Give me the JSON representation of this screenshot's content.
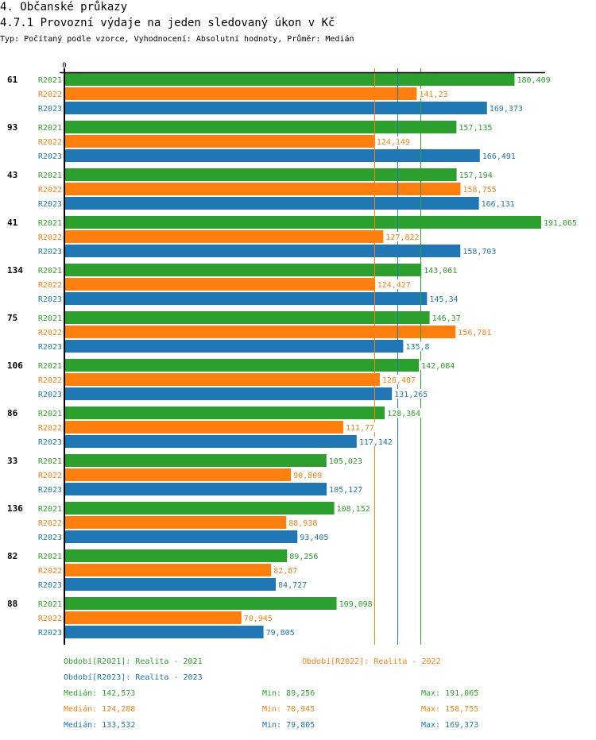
{
  "header": {
    "section_title": "4. Občanské průkazy",
    "chart_title": "4.7.1 Provozní výdaje na jeden sledovaný úkon v Kč",
    "subtitle": "Typ: Počítaný podle vzorce, Vyhodnocení: Absolutní hodnoty, Průměr: Medián"
  },
  "colors": {
    "R2021": "#2ca02c",
    "R2022": "#ff7f0e",
    "R2023": "#1f77b4",
    "axis": "#000000"
  },
  "chart_data": {
    "type": "bar",
    "orientation": "horizontal",
    "title": "4.7.1 Provozní výdaje na jeden sledovaný úkon v Kč",
    "xlabel": "",
    "ylabel": "",
    "x_tick_labels": [
      "0"
    ],
    "xlim": [
      0,
      192
    ],
    "grid": false,
    "categories": [
      "61",
      "93",
      "43",
      "41",
      "134",
      "75",
      "106",
      "86",
      "33",
      "136",
      "82",
      "88"
    ],
    "series": [
      {
        "name": "R2021",
        "values": [
          180.409,
          157.135,
          157.194,
          191.065,
          143.061,
          146.37,
          142.084,
          128.364,
          105.023,
          108.152,
          89.256,
          109.098
        ],
        "labels": [
          "180,409",
          "157,135",
          "157,194",
          "191,065",
          "143,061",
          "146,37",
          "142,084",
          "128,364",
          "105,023",
          "108,152",
          "89,256",
          "109,098"
        ],
        "median": 142.573
      },
      {
        "name": "R2022",
        "values": [
          141.23,
          124.149,
          158.755,
          127.822,
          124.427,
          156.781,
          126.407,
          111.77,
          90.809,
          88.938,
          82.87,
          70.945
        ],
        "labels": [
          "141,23",
          "124,149",
          "158,755",
          "127,822",
          "124,427",
          "156,781",
          "126,407",
          "111,77",
          "90,809",
          "88,938",
          "82,87",
          "70,945"
        ],
        "median": 124.288
      },
      {
        "name": "R2023",
        "values": [
          169.373,
          166.491,
          166.131,
          158.703,
          145.34,
          135.8,
          131.265,
          117.142,
          105.127,
          93.405,
          84.727,
          79.805
        ],
        "labels": [
          "169,373",
          "166,491",
          "166,131",
          "158,703",
          "145,34",
          "135,8",
          "131,265",
          "117,142",
          "105,127",
          "93,405",
          "84,727",
          "79,805"
        ],
        "median": 133.532
      }
    ],
    "legend_placement": "bottom",
    "legend": [
      {
        "series": "R2021",
        "text": "Období[R2021]: Realita - 2021"
      },
      {
        "series": "R2022",
        "text": "Období[R2022]: Realita - 2022"
      },
      {
        "series": "R2023",
        "text": "Období[R2023]: Realita - 2023"
      }
    ],
    "stats": [
      {
        "series": "R2021",
        "median": "Medián: 142,573",
        "min": "Min: 89,256",
        "max": "Max: 191,065"
      },
      {
        "series": "R2022",
        "median": "Medián: 124,288",
        "min": "Min: 70,945",
        "max": "Max: 158,755"
      },
      {
        "series": "R2023",
        "median": "Medián: 133,532",
        "min": "Min: 79,805",
        "max": "Max: 169,373"
      }
    ]
  }
}
